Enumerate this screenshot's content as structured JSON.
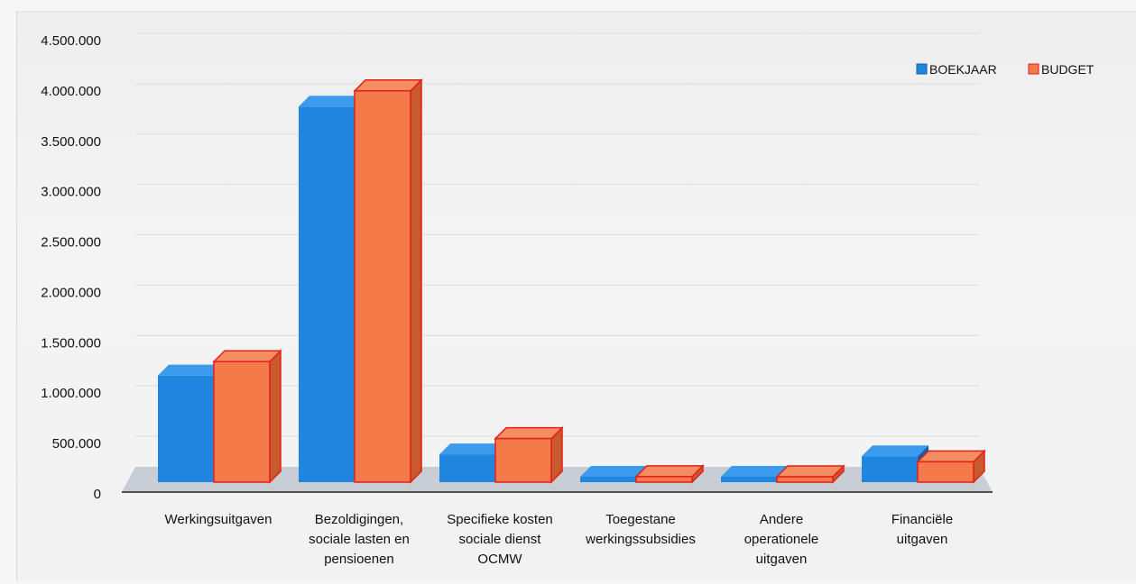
{
  "chart_data": {
    "type": "bar",
    "title": "",
    "xlabel": "",
    "ylabel": "",
    "ylim": [
      0,
      4500000
    ],
    "yticks": [
      0,
      500000,
      1000000,
      1500000,
      2000000,
      2500000,
      3000000,
      3500000,
      4000000,
      4500000
    ],
    "ytick_labels": [
      "0",
      "500.000",
      "1.000.000",
      "1.500.000",
      "2.000.000",
      "2.500.000",
      "3.000.000",
      "3.500.000",
      "4.000.000",
      "4.500.000"
    ],
    "categories": [
      [
        "Werkingsuitgaven"
      ],
      [
        "Bezoldigingen,",
        "sociale lasten en",
        "pensioenen"
      ],
      [
        "Specifieke kosten",
        "sociale dienst",
        "OCMW"
      ],
      [
        "Toegestane",
        "werkingssubsidies"
      ],
      [
        "Andere",
        "operationele",
        "uitgaven"
      ],
      [
        "Financiële",
        "uitgaven"
      ]
    ],
    "series": [
      {
        "name": "BOEKJAAR",
        "color": "#1f86e0",
        "values": [
          1150000,
          4050000,
          300000,
          20000,
          15000,
          280000
        ]
      },
      {
        "name": "BUDGET",
        "color": "#f47a4a",
        "values": [
          1300000,
          4220000,
          470000,
          60000,
          30000,
          220000
        ]
      }
    ],
    "legend_position": "top-right",
    "grid": true,
    "style": "3d-column"
  }
}
